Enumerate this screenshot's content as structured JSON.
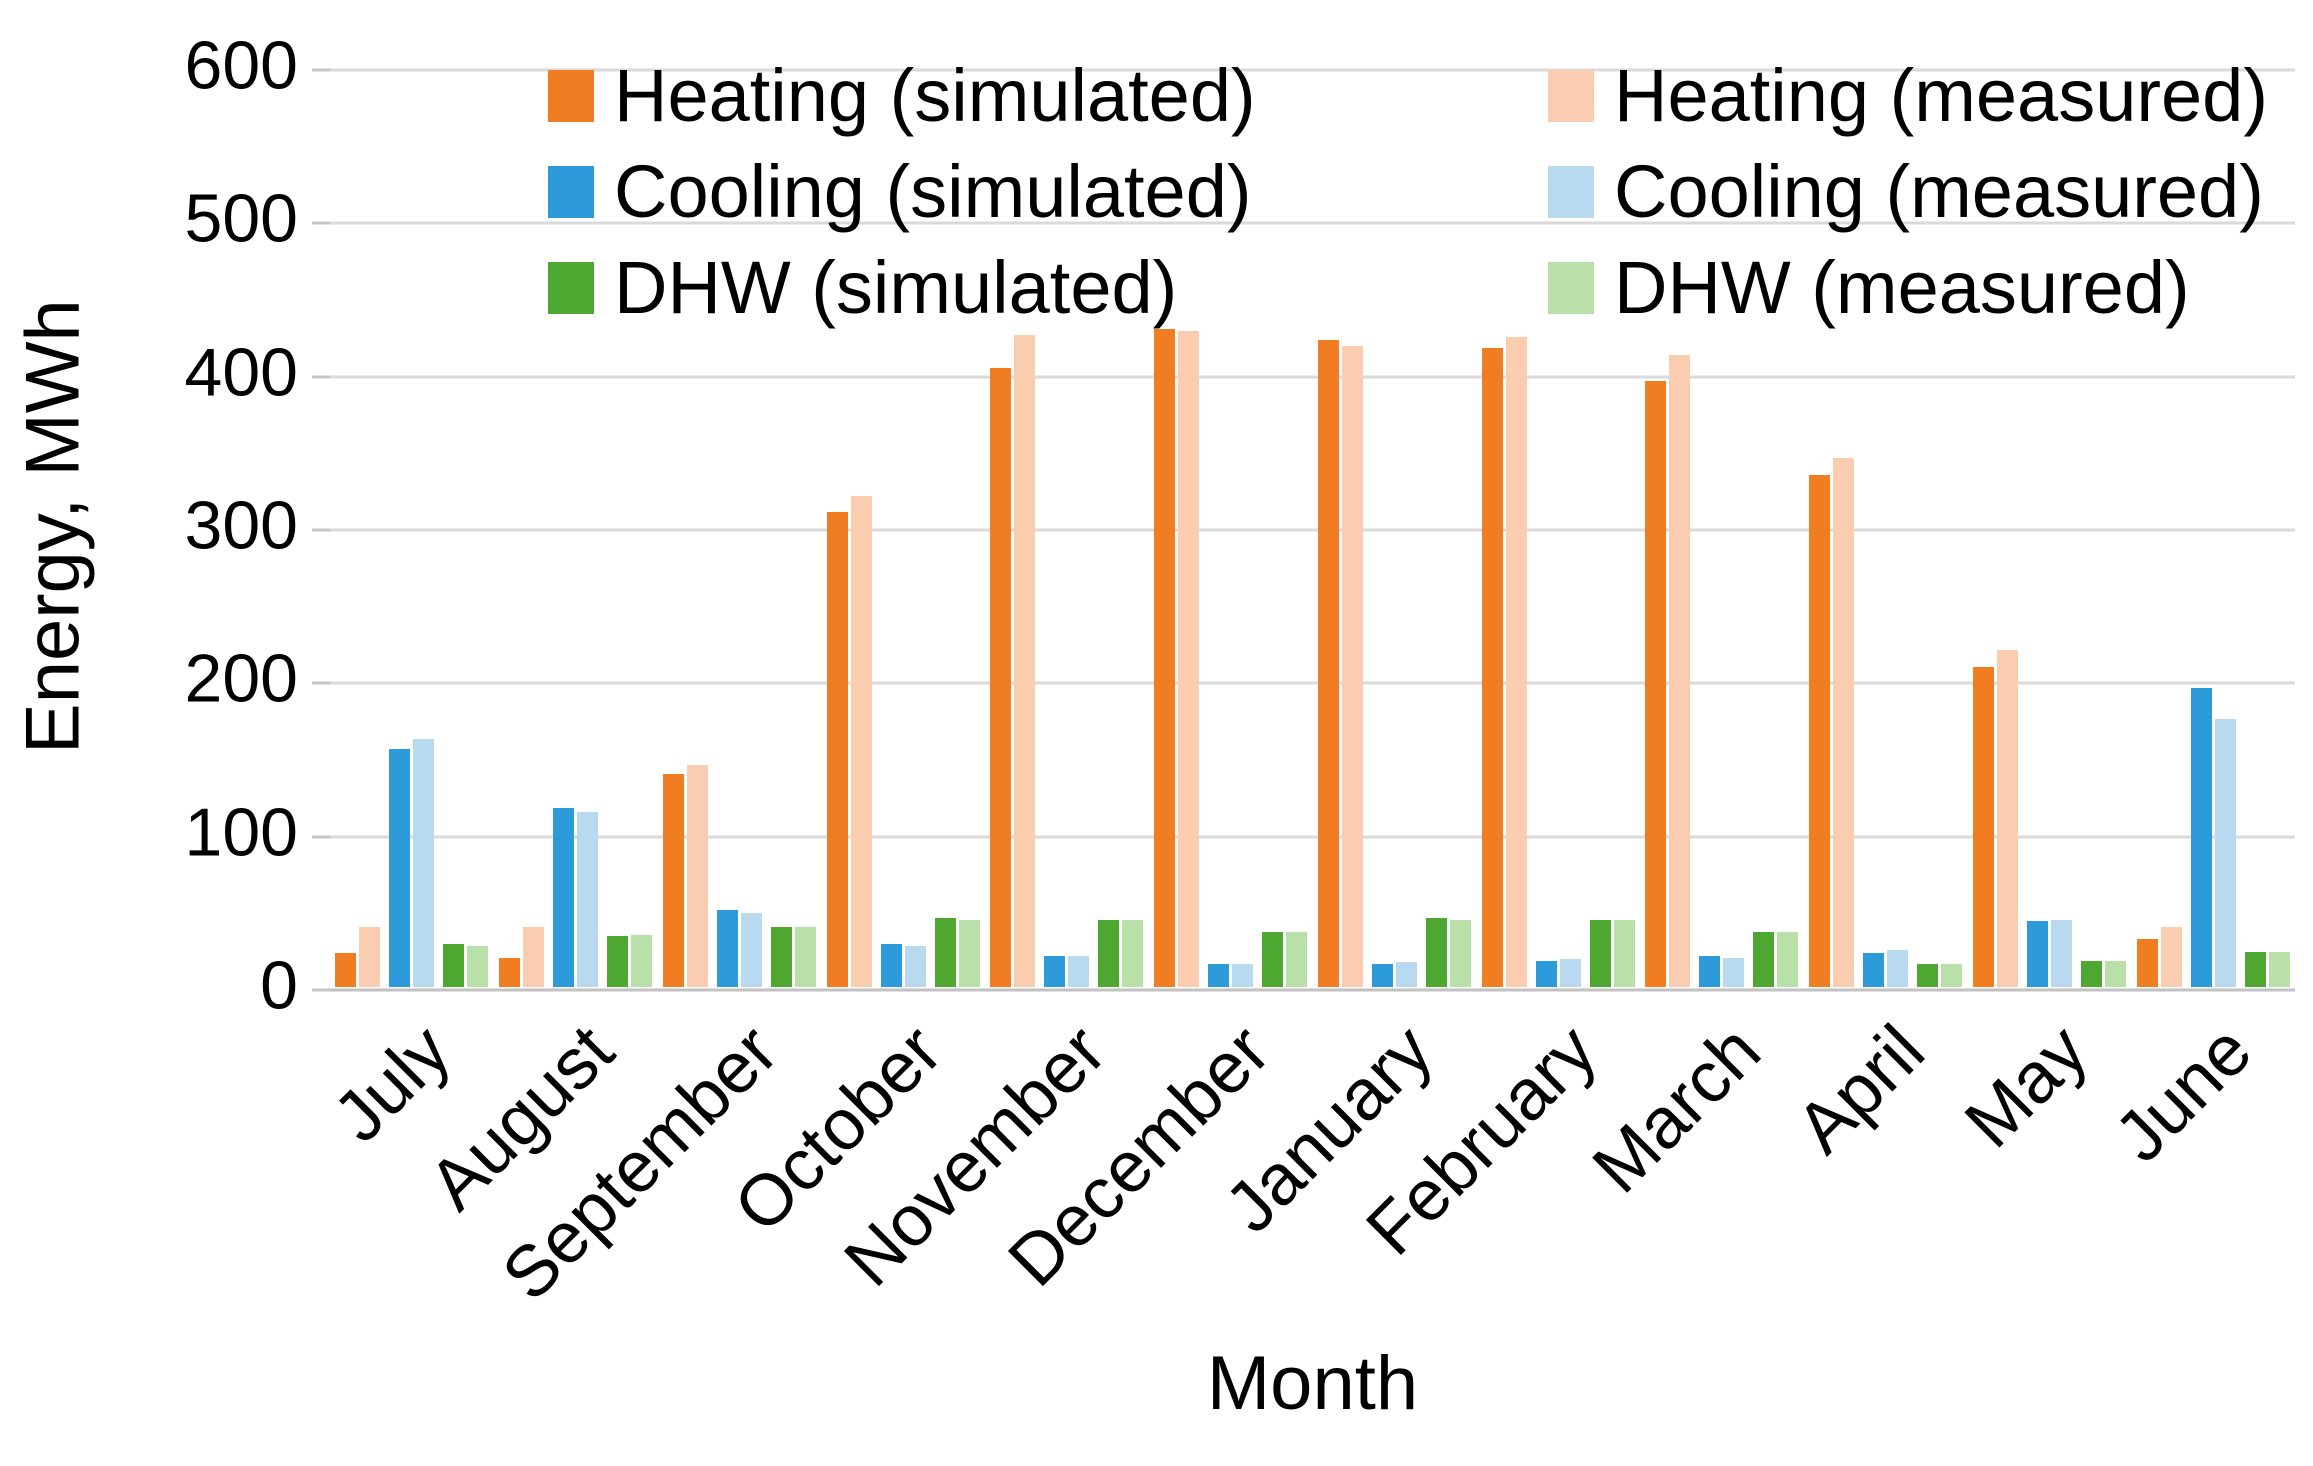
{
  "chart_data": {
    "type": "bar",
    "title": "",
    "xlabel": "Month",
    "ylabel": "Energy, MWh",
    "ylim": [
      0,
      600
    ],
    "yticks": [
      0,
      100,
      200,
      300,
      400,
      500,
      600
    ],
    "grid": true,
    "legend": {
      "position": "top",
      "columns": [
        [
          0,
          2,
          4
        ],
        [
          1,
          3,
          5
        ]
      ]
    },
    "categories": [
      "July",
      "August",
      "September",
      "October",
      "November",
      "December",
      "January",
      "February",
      "March",
      "April",
      "May",
      "June"
    ],
    "series": [
      {
        "name": "Heating (simulated)",
        "color": "#F07D22",
        "values": [
          22,
          19,
          139,
          310,
          404,
          429,
          422,
          417,
          395,
          334,
          209,
          31
        ]
      },
      {
        "name": "Heating (measured)",
        "color": "#FACDB0",
        "values": [
          39,
          39,
          145,
          320,
          425,
          428,
          418,
          424,
          412,
          345,
          220,
          39
        ]
      },
      {
        "name": "Cooling (simulated)",
        "color": "#2D9BD9",
        "values": [
          155,
          117,
          50,
          28,
          20,
          15,
          15,
          17,
          20,
          22,
          43,
          195
        ]
      },
      {
        "name": "Cooling (measured)",
        "color": "#B9D9F1",
        "values": [
          162,
          114,
          48,
          27,
          20,
          15,
          16,
          18,
          19,
          24,
          44,
          175
        ]
      },
      {
        "name": "DHW (simulated)",
        "color": "#4EA730",
        "values": [
          28,
          33,
          39,
          45,
          44,
          36,
          45,
          44,
          36,
          15,
          17,
          23
        ]
      },
      {
        "name": "DHW (measured)",
        "color": "#BAE0AA",
        "values": [
          27,
          34,
          39,
          44,
          44,
          36,
          44,
          44,
          36,
          15,
          17,
          23
        ]
      }
    ],
    "colors": {
      "gridline": "#DADADA",
      "baseline": "#C2C2C2",
      "text": "#000000"
    }
  }
}
